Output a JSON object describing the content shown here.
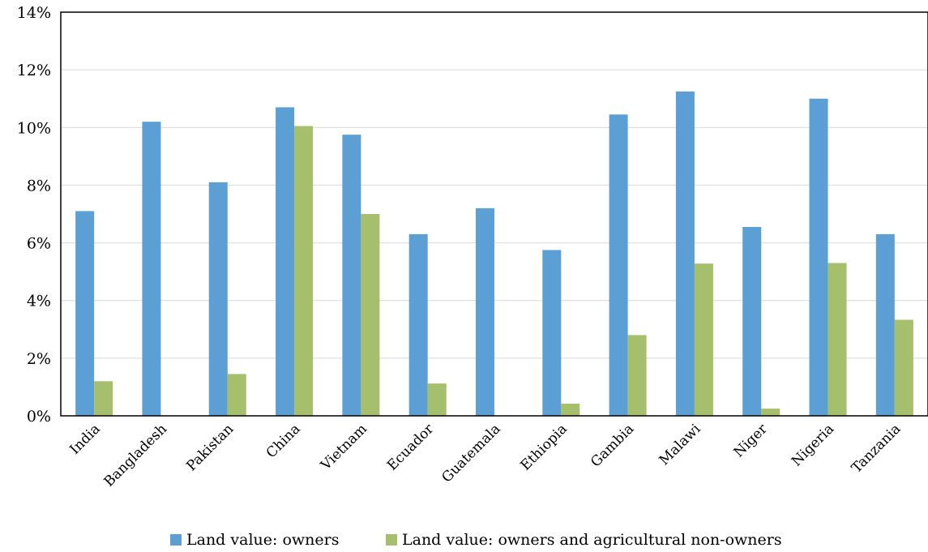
{
  "chart_data": {
    "type": "bar",
    "categories": [
      "India",
      "Bangladesh",
      "Pakistan",
      "China",
      "Vietnam",
      "Ecuador",
      "Guatemala",
      "Ethiopia",
      "Gambia",
      "Malawi",
      "Niger",
      "Nigeria",
      "Tanzania"
    ],
    "series": [
      {
        "name": "Land value: owners",
        "color": "#5b9fd4",
        "values": [
          7.1,
          10.2,
          8.1,
          10.7,
          9.75,
          6.3,
          7.2,
          5.75,
          10.45,
          11.25,
          6.55,
          11.0,
          6.3
        ]
      },
      {
        "name": "Land value: owners and agricultural non-owners",
        "color": "#a5bf6c",
        "values": [
          1.2,
          null,
          1.45,
          10.05,
          7.0,
          1.12,
          null,
          0.42,
          2.8,
          5.28,
          0.25,
          5.3,
          3.33
        ]
      }
    ],
    "yticks": [
      "0%",
      "2%",
      "4%",
      "6%",
      "8%",
      "10%",
      "12%",
      "14%"
    ],
    "ylim": [
      0,
      14
    ],
    "grid": true,
    "legend_position": "bottom"
  }
}
